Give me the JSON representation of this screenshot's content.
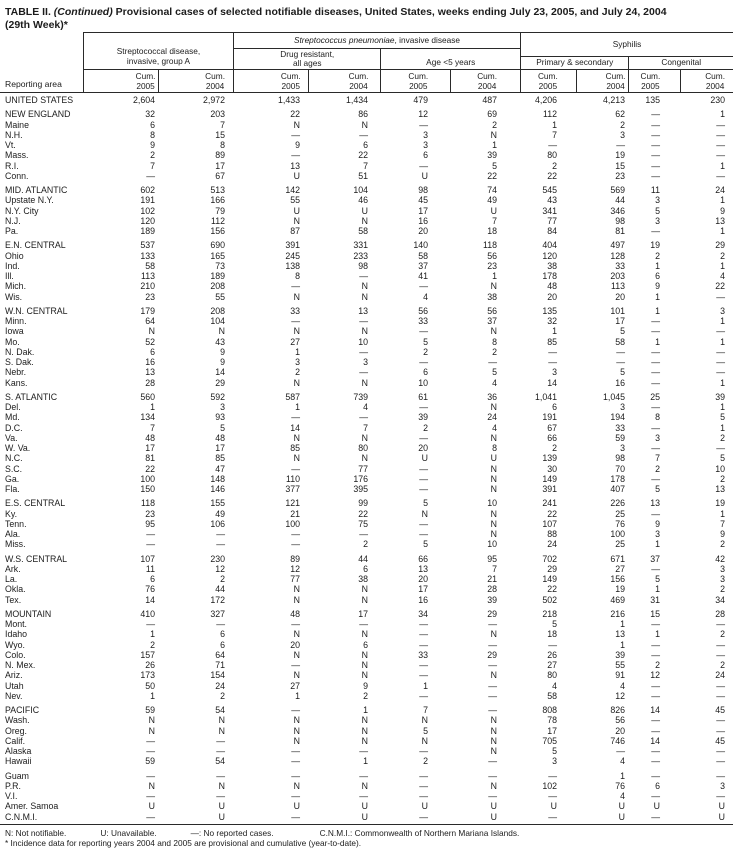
{
  "title": {
    "prefix": "TABLE II.",
    "continued": " (Continued) ",
    "rest": "Provisional cases of selected notifiable diseases, United States, weeks ending July 23, 2005, and July 24, 2004",
    "line2": "(29th Week)*"
  },
  "header": {
    "reporting_area": "Reporting area",
    "group_a_line1": "Streptococcal disease,",
    "group_a_line2": "invasive, group A",
    "pneumoniae_italic": "Streptococcus pneumoniae",
    "pneumoniae_rest": ", invasive disease",
    "drug_line1": "Drug resistant,",
    "drug_line2": "all ages",
    "age": "Age <5 years",
    "syphilis": "Syphilis",
    "primary_secondary": "Primary & secondary",
    "congenital": "Congenital",
    "cum": "Cum.",
    "cum_cols": [
      "2005",
      "2004",
      "2005",
      "2004",
      "2005",
      "2004",
      "2005",
      "2004",
      "2005",
      "2004"
    ]
  },
  "groups": [
    {
      "rows": [
        {
          "area": "UNITED STATES",
          "values": [
            "2,604",
            "2,972",
            "1,433",
            "1,434",
            "479",
            "487",
            "4,206",
            "4,213",
            "135",
            "230"
          ]
        }
      ]
    },
    {
      "rows": [
        {
          "area": "NEW ENGLAND",
          "values": [
            "32",
            "203",
            "22",
            "86",
            "12",
            "69",
            "112",
            "62",
            "—",
            "1"
          ]
        },
        {
          "area": "Maine",
          "values": [
            "6",
            "7",
            "N",
            "N",
            "—",
            "2",
            "1",
            "2",
            "—",
            "—"
          ]
        },
        {
          "area": "N.H.",
          "values": [
            "8",
            "15",
            "—",
            "—",
            "3",
            "N",
            "7",
            "3",
            "—",
            "—"
          ]
        },
        {
          "area": "Vt.",
          "values": [
            "9",
            "8",
            "9",
            "6",
            "3",
            "1",
            "—",
            "—",
            "—",
            "—"
          ]
        },
        {
          "area": "Mass.",
          "values": [
            "2",
            "89",
            "—",
            "22",
            "6",
            "39",
            "80",
            "19",
            "—",
            "—"
          ]
        },
        {
          "area": "R.I.",
          "values": [
            "7",
            "17",
            "13",
            "7",
            "—",
            "5",
            "2",
            "15",
            "—",
            "1"
          ]
        },
        {
          "area": "Conn.",
          "values": [
            "—",
            "67",
            "U",
            "51",
            "U",
            "22",
            "22",
            "23",
            "—",
            "—"
          ]
        }
      ]
    },
    {
      "rows": [
        {
          "area": "MID. ATLANTIC",
          "values": [
            "602",
            "513",
            "142",
            "104",
            "98",
            "74",
            "545",
            "569",
            "11",
            "24"
          ]
        },
        {
          "area": "Upstate N.Y.",
          "values": [
            "191",
            "166",
            "55",
            "46",
            "45",
            "49",
            "43",
            "44",
            "3",
            "1"
          ]
        },
        {
          "area": "N.Y. City",
          "values": [
            "102",
            "79",
            "U",
            "U",
            "17",
            "U",
            "341",
            "346",
            "5",
            "9"
          ]
        },
        {
          "area": "N.J.",
          "values": [
            "120",
            "112",
            "N",
            "N",
            "16",
            "7",
            "77",
            "98",
            "3",
            "13"
          ]
        },
        {
          "area": "Pa.",
          "values": [
            "189",
            "156",
            "87",
            "58",
            "20",
            "18",
            "84",
            "81",
            "—",
            "1"
          ]
        }
      ]
    },
    {
      "rows": [
        {
          "area": "E.N. CENTRAL",
          "values": [
            "537",
            "690",
            "391",
            "331",
            "140",
            "118",
            "404",
            "497",
            "19",
            "29"
          ]
        },
        {
          "area": "Ohio",
          "values": [
            "133",
            "165",
            "245",
            "233",
            "58",
            "56",
            "120",
            "128",
            "2",
            "2"
          ]
        },
        {
          "area": "Ind.",
          "values": [
            "58",
            "73",
            "138",
            "98",
            "37",
            "23",
            "38",
            "33",
            "1",
            "1"
          ]
        },
        {
          "area": "Ill.",
          "values": [
            "113",
            "189",
            "8",
            "—",
            "41",
            "1",
            "178",
            "203",
            "6",
            "4"
          ]
        },
        {
          "area": "Mich.",
          "values": [
            "210",
            "208",
            "—",
            "N",
            "—",
            "N",
            "48",
            "113",
            "9",
            "22"
          ]
        },
        {
          "area": "Wis.",
          "values": [
            "23",
            "55",
            "N",
            "N",
            "4",
            "38",
            "20",
            "20",
            "1",
            "—"
          ]
        }
      ]
    },
    {
      "rows": [
        {
          "area": "W.N. CENTRAL",
          "values": [
            "179",
            "208",
            "33",
            "13",
            "56",
            "56",
            "135",
            "101",
            "1",
            "3"
          ]
        },
        {
          "area": "Minn.",
          "values": [
            "64",
            "104",
            "—",
            "—",
            "33",
            "37",
            "32",
            "17",
            "—",
            "1"
          ]
        },
        {
          "area": "Iowa",
          "values": [
            "N",
            "N",
            "N",
            "N",
            "—",
            "N",
            "1",
            "5",
            "—",
            "—"
          ]
        },
        {
          "area": "Mo.",
          "values": [
            "52",
            "43",
            "27",
            "10",
            "5",
            "8",
            "85",
            "58",
            "1",
            "1"
          ]
        },
        {
          "area": "N. Dak.",
          "values": [
            "6",
            "9",
            "1",
            "—",
            "2",
            "2",
            "—",
            "—",
            "—",
            "—"
          ]
        },
        {
          "area": "S. Dak.",
          "values": [
            "16",
            "9",
            "3",
            "3",
            "—",
            "—",
            "—",
            "—",
            "—",
            "—"
          ]
        },
        {
          "area": "Nebr.",
          "values": [
            "13",
            "14",
            "2",
            "—",
            "6",
            "5",
            "3",
            "5",
            "—",
            "—"
          ]
        },
        {
          "area": "Kans.",
          "values": [
            "28",
            "29",
            "N",
            "N",
            "10",
            "4",
            "14",
            "16",
            "—",
            "1"
          ]
        }
      ]
    },
    {
      "rows": [
        {
          "area": "S. ATLANTIC",
          "values": [
            "560",
            "592",
            "587",
            "739",
            "61",
            "36",
            "1,041",
            "1,045",
            "25",
            "39"
          ]
        },
        {
          "area": "Del.",
          "values": [
            "1",
            "3",
            "1",
            "4",
            "—",
            "N",
            "6",
            "3",
            "—",
            "1"
          ]
        },
        {
          "area": "Md.",
          "values": [
            "134",
            "93",
            "—",
            "—",
            "39",
            "24",
            "191",
            "194",
            "8",
            "5"
          ]
        },
        {
          "area": "D.C.",
          "values": [
            "7",
            "5",
            "14",
            "7",
            "2",
            "4",
            "67",
            "33",
            "—",
            "1"
          ]
        },
        {
          "area": "Va.",
          "values": [
            "48",
            "48",
            "N",
            "N",
            "—",
            "N",
            "66",
            "59",
            "3",
            "2"
          ]
        },
        {
          "area": "W. Va.",
          "values": [
            "17",
            "17",
            "85",
            "80",
            "20",
            "8",
            "2",
            "3",
            "—",
            "—"
          ]
        },
        {
          "area": "N.C.",
          "values": [
            "81",
            "85",
            "N",
            "N",
            "U",
            "U",
            "139",
            "98",
            "7",
            "5"
          ]
        },
        {
          "area": "S.C.",
          "values": [
            "22",
            "47",
            "—",
            "77",
            "—",
            "N",
            "30",
            "70",
            "2",
            "10"
          ]
        },
        {
          "area": "Ga.",
          "values": [
            "100",
            "148",
            "110",
            "176",
            "—",
            "N",
            "149",
            "178",
            "—",
            "2"
          ]
        },
        {
          "area": "Fla.",
          "values": [
            "150",
            "146",
            "377",
            "395",
            "—",
            "N",
            "391",
            "407",
            "5",
            "13"
          ]
        }
      ]
    },
    {
      "rows": [
        {
          "area": "E.S. CENTRAL",
          "values": [
            "118",
            "155",
            "121",
            "99",
            "5",
            "10",
            "241",
            "226",
            "13",
            "19"
          ]
        },
        {
          "area": "Ky.",
          "values": [
            "23",
            "49",
            "21",
            "22",
            "N",
            "N",
            "22",
            "25",
            "—",
            "1"
          ]
        },
        {
          "area": "Tenn.",
          "values": [
            "95",
            "106",
            "100",
            "75",
            "—",
            "N",
            "107",
            "76",
            "9",
            "7"
          ]
        },
        {
          "area": "Ala.",
          "values": [
            "—",
            "—",
            "—",
            "—",
            "—",
            "N",
            "88",
            "100",
            "3",
            "9"
          ]
        },
        {
          "area": "Miss.",
          "values": [
            "—",
            "—",
            "—",
            "2",
            "5",
            "10",
            "24",
            "25",
            "1",
            "2"
          ]
        }
      ]
    },
    {
      "rows": [
        {
          "area": "W.S. CENTRAL",
          "values": [
            "107",
            "230",
            "89",
            "44",
            "66",
            "95",
            "702",
            "671",
            "37",
            "42"
          ]
        },
        {
          "area": "Ark.",
          "values": [
            "11",
            "12",
            "12",
            "6",
            "13",
            "7",
            "29",
            "27",
            "—",
            "3"
          ]
        },
        {
          "area": "La.",
          "values": [
            "6",
            "2",
            "77",
            "38",
            "20",
            "21",
            "149",
            "156",
            "5",
            "3"
          ]
        },
        {
          "area": "Okla.",
          "values": [
            "76",
            "44",
            "N",
            "N",
            "17",
            "28",
            "22",
            "19",
            "1",
            "2"
          ]
        },
        {
          "area": "Tex.",
          "values": [
            "14",
            "172",
            "N",
            "N",
            "16",
            "39",
            "502",
            "469",
            "31",
            "34"
          ]
        }
      ]
    },
    {
      "rows": [
        {
          "area": "MOUNTAIN",
          "values": [
            "410",
            "327",
            "48",
            "17",
            "34",
            "29",
            "218",
            "216",
            "15",
            "28"
          ]
        },
        {
          "area": "Mont.",
          "values": [
            "—",
            "—",
            "—",
            "—",
            "—",
            "—",
            "5",
            "1",
            "—",
            "—"
          ]
        },
        {
          "area": "Idaho",
          "values": [
            "1",
            "6",
            "N",
            "N",
            "—",
            "N",
            "18",
            "13",
            "1",
            "2"
          ]
        },
        {
          "area": "Wyo.",
          "values": [
            "2",
            "6",
            "20",
            "6",
            "—",
            "—",
            "—",
            "1",
            "—",
            "—"
          ]
        },
        {
          "area": "Colo.",
          "values": [
            "157",
            "64",
            "N",
            "N",
            "33",
            "29",
            "26",
            "39",
            "—",
            "—"
          ]
        },
        {
          "area": "N. Mex.",
          "values": [
            "26",
            "71",
            "—",
            "N",
            "—",
            "—",
            "27",
            "55",
            "2",
            "2"
          ]
        },
        {
          "area": "Ariz.",
          "values": [
            "173",
            "154",
            "N",
            "N",
            "—",
            "N",
            "80",
            "91",
            "12",
            "24"
          ]
        },
        {
          "area": "Utah",
          "values": [
            "50",
            "24",
            "27",
            "9",
            "1",
            "—",
            "4",
            "4",
            "—",
            "—"
          ]
        },
        {
          "area": "Nev.",
          "values": [
            "1",
            "2",
            "1",
            "2",
            "—",
            "—",
            "58",
            "12",
            "—",
            "—"
          ]
        }
      ]
    },
    {
      "rows": [
        {
          "area": "PACIFIC",
          "values": [
            "59",
            "54",
            "—",
            "1",
            "7",
            "—",
            "808",
            "826",
            "14",
            "45"
          ]
        },
        {
          "area": "Wash.",
          "values": [
            "N",
            "N",
            "N",
            "N",
            "N",
            "N",
            "78",
            "56",
            "—",
            "—"
          ]
        },
        {
          "area": "Oreg.",
          "values": [
            "N",
            "N",
            "N",
            "N",
            "5",
            "N",
            "17",
            "20",
            "—",
            "—"
          ]
        },
        {
          "area": "Calif.",
          "values": [
            "—",
            "—",
            "N",
            "N",
            "N",
            "N",
            "705",
            "746",
            "14",
            "45"
          ]
        },
        {
          "area": "Alaska",
          "values": [
            "—",
            "—",
            "—",
            "—",
            "—",
            "N",
            "5",
            "—",
            "—",
            "—"
          ]
        },
        {
          "area": "Hawaii",
          "values": [
            "59",
            "54",
            "—",
            "1",
            "2",
            "—",
            "3",
            "4",
            "—",
            "—"
          ]
        }
      ]
    },
    {
      "rows": [
        {
          "area": "Guam",
          "values": [
            "—",
            "—",
            "—",
            "—",
            "—",
            "—",
            "—",
            "1",
            "—",
            "—"
          ]
        },
        {
          "area": "P.R.",
          "values": [
            "N",
            "N",
            "N",
            "N",
            "—",
            "N",
            "102",
            "76",
            "6",
            "3"
          ]
        },
        {
          "area": "V.I.",
          "values": [
            "—",
            "—",
            "—",
            "—",
            "—",
            "—",
            "—",
            "4",
            "—",
            "—"
          ]
        },
        {
          "area": "Amer. Samoa",
          "values": [
            "U",
            "U",
            "U",
            "U",
            "U",
            "U",
            "U",
            "U",
            "U",
            "U"
          ]
        },
        {
          "area": "C.N.M.I.",
          "values": [
            "—",
            "U",
            "—",
            "U",
            "—",
            "U",
            "—",
            "U",
            "—",
            "U"
          ]
        }
      ]
    }
  ],
  "legend": {
    "n": "N: Not notifiable.",
    "u": "U: Unavailable.",
    "dash": "—: No reported cases.",
    "cnmi": "C.N.M.I.: Commonwealth of Northern Mariana Islands."
  },
  "footnote": "* Incidence data for reporting years 2004 and 2005 are provisional and cumulative (year-to-date)."
}
